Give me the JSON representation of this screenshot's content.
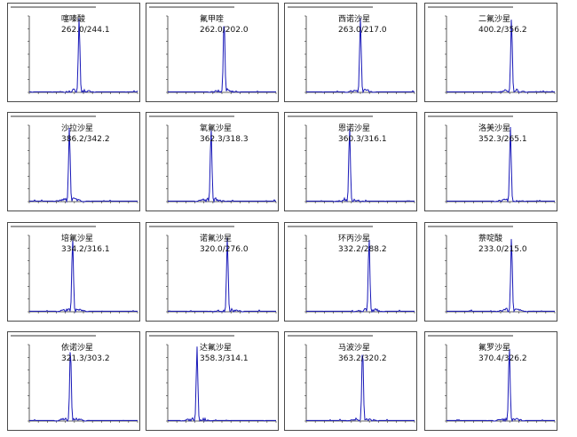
{
  "colors": {
    "trace": "#1818b8",
    "axis": "#333333",
    "frame": "#4a4a4a",
    "text": "#111111"
  },
  "chart_data": [
    {
      "type": "line",
      "title": "噻嗪酸",
      "subtitle": "262.0/244.1"
    },
    {
      "type": "line",
      "title": "氟甲喹",
      "subtitle": "262.0/202.0"
    },
    {
      "type": "line",
      "title": "西诺沙星",
      "subtitle": "263.0/217.0"
    },
    {
      "type": "line",
      "title": "二氟沙星",
      "subtitle": "400.2/356.2"
    },
    {
      "type": "line",
      "title": "沙拉沙星",
      "subtitle": "386.2/342.2"
    },
    {
      "type": "line",
      "title": "氧氟沙星",
      "subtitle": "362.3/318.3"
    },
    {
      "type": "line",
      "title": "恩诺沙星",
      "subtitle": "360.3/316.1"
    },
    {
      "type": "line",
      "title": "洛美沙星",
      "subtitle": "352.3/265.1"
    },
    {
      "type": "line",
      "title": "培氟沙星",
      "subtitle": "334.2/316.1"
    },
    {
      "type": "line",
      "title": "诺氟沙星",
      "subtitle": "320.0/276.0"
    },
    {
      "type": "line",
      "title": "环丙沙星",
      "subtitle": "332.2/288.2"
    },
    {
      "type": "line",
      "title": "萘啶酸",
      "subtitle": "233.0/215.0"
    },
    {
      "type": "line",
      "title": "依诺沙星",
      "subtitle": "321.3/303.2"
    },
    {
      "type": "line",
      "title": "达氟沙星",
      "subtitle": "358.3/314.1"
    },
    {
      "type": "line",
      "title": "马波沙星",
      "subtitle": "363.2/320.2"
    },
    {
      "type": "line",
      "title": "氟罗沙星",
      "subtitle": "370.4/326.2"
    }
  ]
}
